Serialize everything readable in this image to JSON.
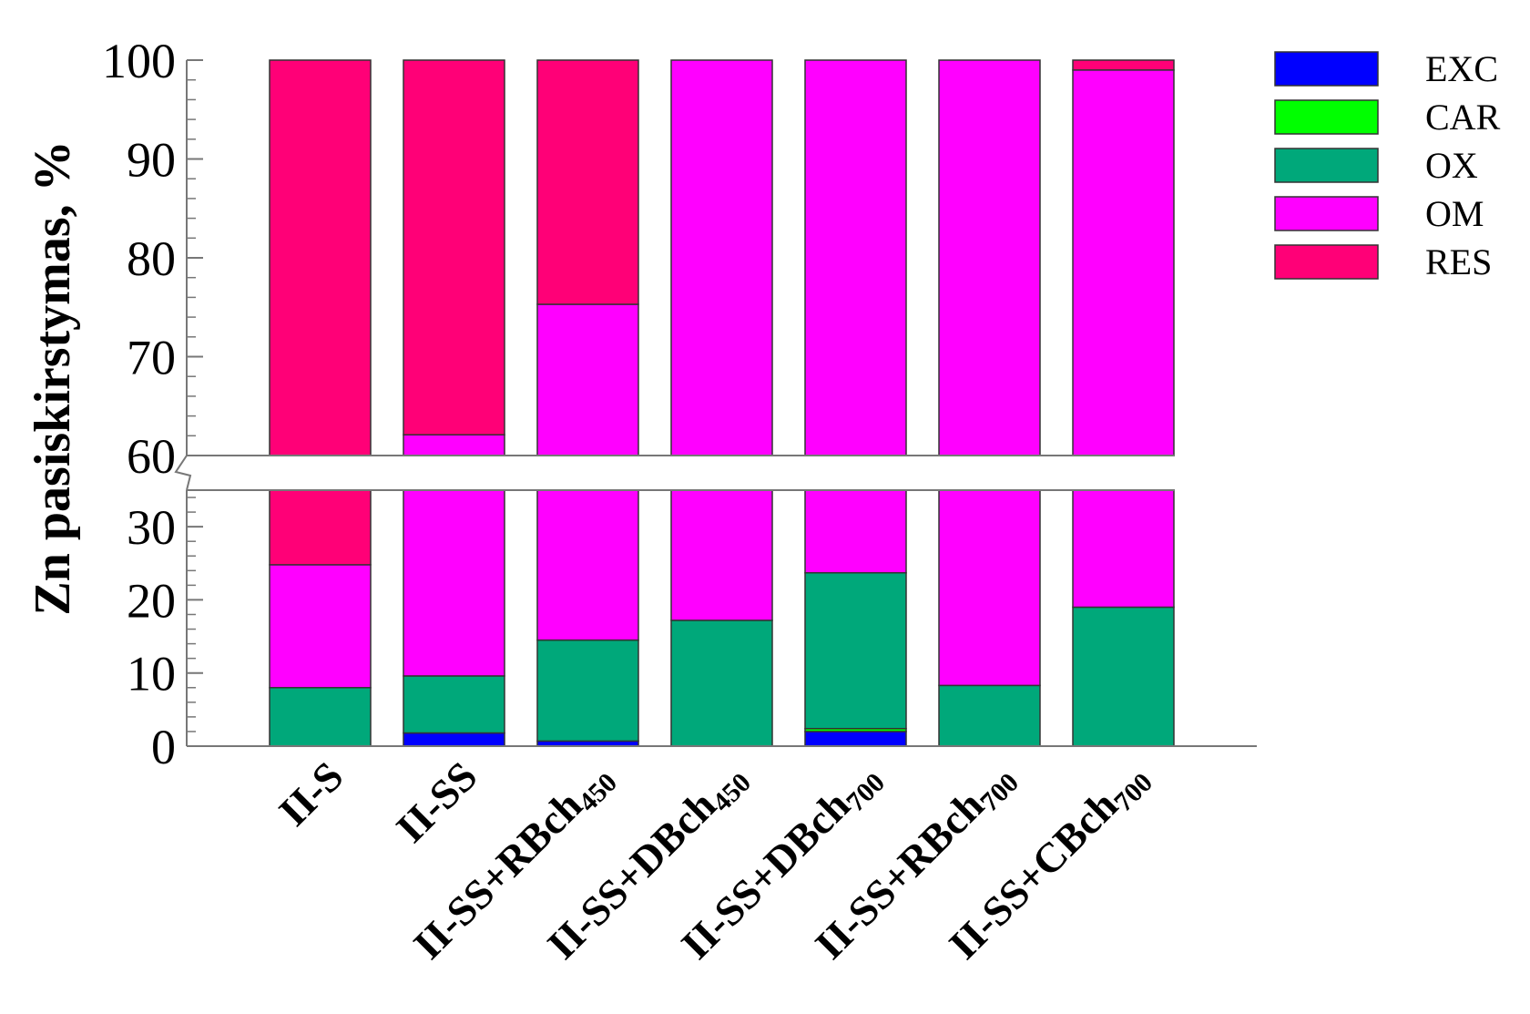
{
  "chart_data": {
    "type": "bar",
    "stacked": true,
    "broken_axis": {
      "lower": [
        0,
        35
      ],
      "upper": [
        60,
        100
      ]
    },
    "ylabel": "Zn pasiskirstymas, %",
    "yticks": [
      0,
      10,
      20,
      30,
      60,
      70,
      80,
      90,
      100
    ],
    "categories": [
      {
        "base": "II-S",
        "sub": ""
      },
      {
        "base": "II-SS",
        "sub": ""
      },
      {
        "base": "II-SS+RBch",
        "sub": "450"
      },
      {
        "base": "II-SS+DBch",
        "sub": "450"
      },
      {
        "base": "II-SS+DBch",
        "sub": "700"
      },
      {
        "base": "II-SS+RBch",
        "sub": "700"
      },
      {
        "base": "II-SS+CBch",
        "sub": "700"
      }
    ],
    "series": [
      {
        "name": "EXC",
        "color": "#0000ff",
        "values": [
          0,
          1.8,
          0.7,
          0,
          2.0,
          0,
          0
        ]
      },
      {
        "name": "CAR",
        "color": "#00ff00",
        "values": [
          0,
          0,
          0,
          0,
          0.4,
          0,
          0
        ]
      },
      {
        "name": "OX",
        "color": "#00a87a",
        "values": [
          8.0,
          7.8,
          13.8,
          17.2,
          21.3,
          8.3,
          19.0
        ]
      },
      {
        "name": "OM",
        "color": "#ff00ff",
        "values": [
          16.8,
          52.5,
          60.8,
          82.8,
          76.3,
          91.7,
          80.0
        ]
      },
      {
        "name": "RES",
        "color": "#ff0077",
        "values": [
          75.2,
          37.9,
          24.7,
          0,
          0,
          0,
          1.0
        ]
      }
    ],
    "legend_position": "top-right",
    "grid": false
  }
}
